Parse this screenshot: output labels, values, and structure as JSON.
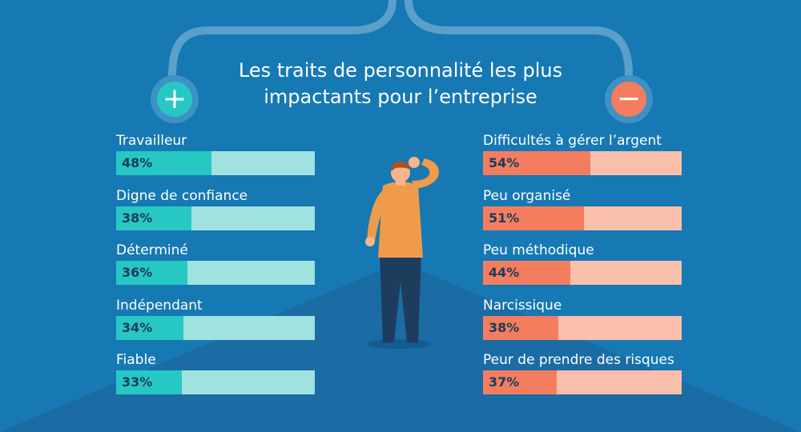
{
  "title_line1": "Les traits de personnalité les plus",
  "title_line2": "impactants pour l’entreprise",
  "positive_symbol": "+",
  "negative_symbol": "−",
  "colors": {
    "background": "#1679b3",
    "positive_fill": "#27c8c3",
    "positive_track": "#9fe2e0",
    "negative_fill": "#f47d5f",
    "negative_track": "#f9bfab"
  },
  "chart_data": [
    {
      "type": "bar",
      "orientation": "horizontal",
      "title": "Les traits de personnalité les plus impactants pour l’entreprise",
      "group": "positive",
      "unit": "%",
      "xlim": [
        0,
        100
      ],
      "categories": [
        "Travailleur",
        "Digne de confiance",
        "Déterminé",
        "Indépendant",
        "Fiable"
      ],
      "values": [
        48,
        38,
        36,
        34,
        33
      ],
      "value_labels": [
        "48%",
        "38%",
        "36%",
        "34%",
        "33%"
      ]
    },
    {
      "type": "bar",
      "orientation": "horizontal",
      "title": "Les traits de personnalité les plus impactants pour l’entreprise",
      "group": "negative",
      "unit": "%",
      "xlim": [
        0,
        100
      ],
      "categories": [
        "Difficultés à gérer l’argent",
        "Peu organisé",
        "Peu méthodique",
        "Narcissique",
        "Peur de prendre des risques"
      ],
      "values": [
        54,
        51,
        44,
        38,
        37
      ],
      "value_labels": [
        "54%",
        "51%",
        "44%",
        "38%",
        "37%"
      ]
    }
  ]
}
